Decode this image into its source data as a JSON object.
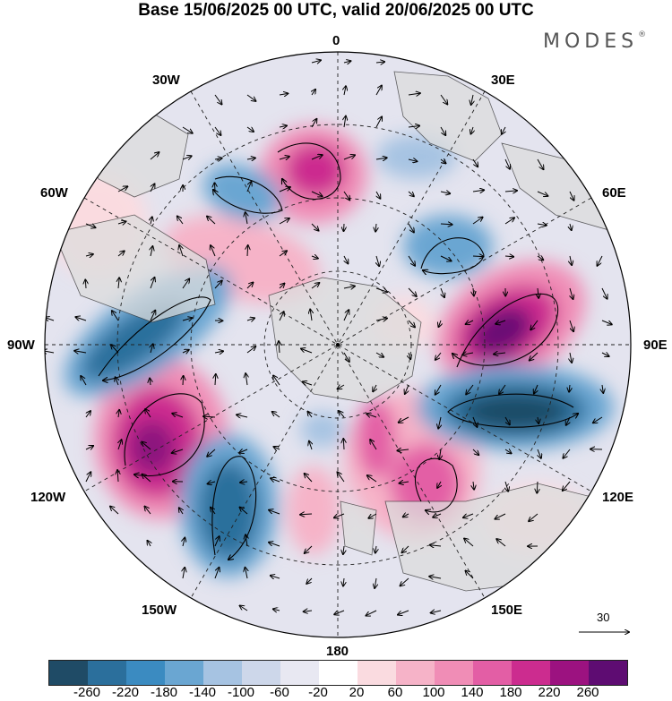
{
  "title": "Base 15/06/2025 00 UTC, valid 20/06/2025 00 UTC",
  "brand": "MODES",
  "brand_mark": "®",
  "longitude_labels": {
    "lon_0": "0",
    "lon_30e": "30E",
    "lon_60e": "60E",
    "lon_90e": "90E",
    "lon_120e": "120E",
    "lon_150e": "150E",
    "lon_180": "180",
    "lon_150w": "150W",
    "lon_120w": "120W",
    "lon_90w": "90W",
    "lon_60w": "60W",
    "lon_30w": "30W"
  },
  "vector_scale_label": "30",
  "colorbar": {
    "colors": [
      "#1f4b66",
      "#2b6f9c",
      "#3b8bc1",
      "#6aa6d2",
      "#a6c3e2",
      "#cdd7ea",
      "#e8e8f2",
      "#ffffff",
      "#fadbe0",
      "#f6b3c8",
      "#f08db6",
      "#e35ea5",
      "#cc2c8f",
      "#9c1280",
      "#5e0c72"
    ],
    "ticks": [
      "-260",
      "-220",
      "-180",
      "-140",
      "-100",
      "-60",
      "-20",
      "20",
      "60",
      "100",
      "140",
      "180",
      "220",
      "260"
    ]
  }
}
